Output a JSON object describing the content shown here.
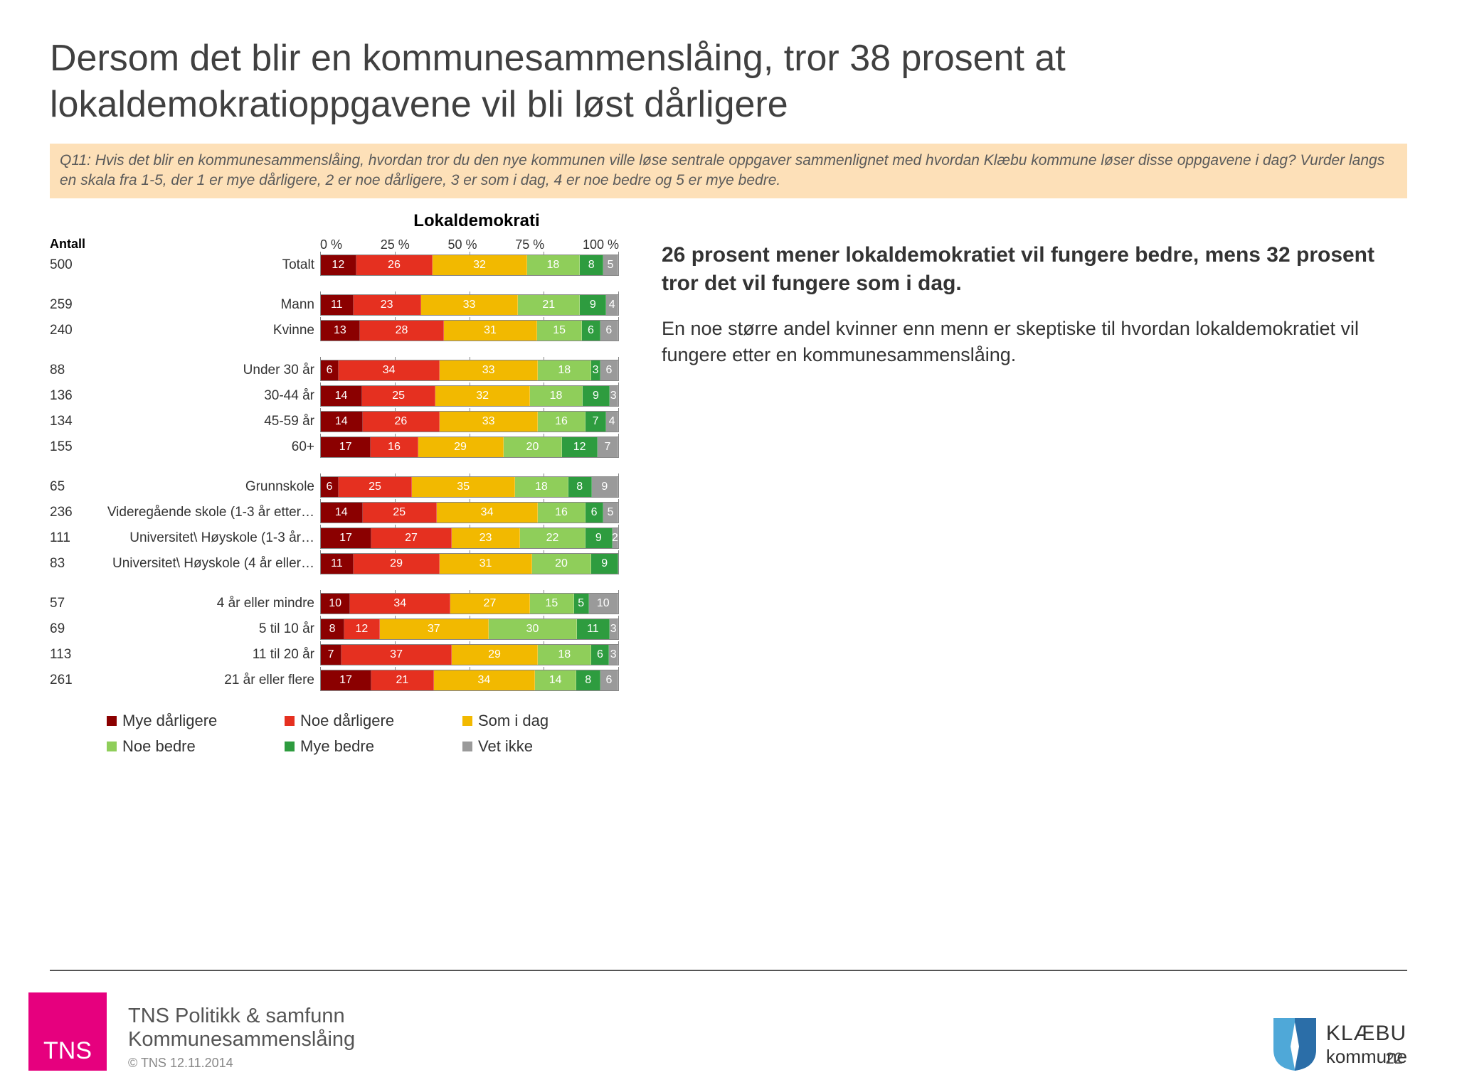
{
  "title": "Dersom det blir en kommunesammenslåing, tror 38 prosent at lokaldemokratioppgavene vil bli løst dårligere",
  "question": "Q11: Hvis det blir en kommunesammenslåing, hvordan tror du den nye kommunen ville løse sentrale oppgaver sammenlignet med hvordan Klæbu kommune løser disse oppgavene i dag? Vurder langs en skala fra 1-5, der 1 er mye dårligere, 2 er noe dårligere, 3 er som i dag, 4 er noe bedre og 5 er mye bedre.",
  "chart": {
    "title": "Lokaldemokrati",
    "antall_header": "Antall",
    "axis_ticks": [
      "0 %",
      "25 %",
      "50 %",
      "75 %",
      "100 %"
    ],
    "colors": {
      "mye_darligere": "#8b0000",
      "noe_darligere": "#e53020",
      "som_i_dag": "#f2b900",
      "noe_bedre": "#8fce5a",
      "mye_bedre": "#2e9c3f",
      "vet_ikke": "#9a9a9a"
    },
    "legend": [
      {
        "label": "Mye dårligere",
        "key": "mye_darligere"
      },
      {
        "label": "Noe dårligere",
        "key": "noe_darligere"
      },
      {
        "label": "Som i dag",
        "key": "som_i_dag"
      },
      {
        "label": "Noe bedre",
        "key": "noe_bedre"
      },
      {
        "label": "Mye bedre",
        "key": "mye_bedre"
      },
      {
        "label": "Vet ikke",
        "key": "vet_ikke"
      }
    ],
    "groups": [
      [
        {
          "count": 500,
          "label": "Totalt",
          "values": [
            12,
            26,
            32,
            18,
            8,
            5
          ]
        }
      ],
      [
        {
          "count": 259,
          "label": "Mann",
          "values": [
            11,
            23,
            33,
            21,
            9,
            4
          ]
        },
        {
          "count": 240,
          "label": "Kvinne",
          "values": [
            13,
            28,
            31,
            15,
            6,
            6
          ]
        }
      ],
      [
        {
          "count": 88,
          "label": "Under 30 år",
          "values": [
            6,
            34,
            33,
            18,
            3,
            6
          ]
        },
        {
          "count": 136,
          "label": "30-44 år",
          "values": [
            14,
            25,
            32,
            18,
            9,
            3
          ]
        },
        {
          "count": 134,
          "label": "45-59 år",
          "values": [
            14,
            26,
            33,
            16,
            7,
            4
          ]
        },
        {
          "count": 155,
          "label": "60+",
          "values": [
            17,
            16,
            29,
            20,
            12,
            7
          ]
        }
      ],
      [
        {
          "count": 65,
          "label": "Grunnskole",
          "values": [
            6,
            25,
            35,
            18,
            8,
            9
          ]
        },
        {
          "count": 236,
          "label": "Videregående skole (1-3 år etter…",
          "values": [
            14,
            25,
            34,
            16,
            6,
            5
          ]
        },
        {
          "count": 111,
          "label": "Universitet\\ Høyskole (1-3 år…",
          "values": [
            17,
            27,
            23,
            22,
            9,
            2
          ]
        },
        {
          "count": 83,
          "label": "Universitet\\ Høyskole (4 år eller…",
          "values": [
            11,
            29,
            31,
            20,
            9,
            0
          ]
        }
      ],
      [
        {
          "count": 57,
          "label": "4 år eller mindre",
          "values": [
            10,
            34,
            27,
            15,
            5,
            10
          ]
        },
        {
          "count": 69,
          "label": "5 til 10 år",
          "values": [
            8,
            12,
            37,
            30,
            11,
            3
          ]
        },
        {
          "count": 113,
          "label": "11 til 20 år",
          "values": [
            7,
            37,
            29,
            18,
            6,
            3
          ]
        },
        {
          "count": 261,
          "label": "21 år eller flere",
          "values": [
            17,
            21,
            34,
            14,
            8,
            6
          ]
        }
      ]
    ]
  },
  "summary": {
    "bold": "26 prosent mener lokaldemokratiet vil fungere bedre, mens 32 prosent tror det vil fungere som i dag.",
    "body": "En noe større andel kvinner enn menn er skeptiske til hvordan lokaldemokratiet vil fungere etter en kommunesammenslåing."
  },
  "footer": {
    "tns_logo": "TNS",
    "org_line1": "TNS Politikk & samfunn",
    "org_line2": "Kommunesammenslåing",
    "copyright": "© TNS 12.11.2014",
    "klabu_l1": "KLÆBU",
    "klabu_l2": "kommune",
    "page": "22"
  }
}
